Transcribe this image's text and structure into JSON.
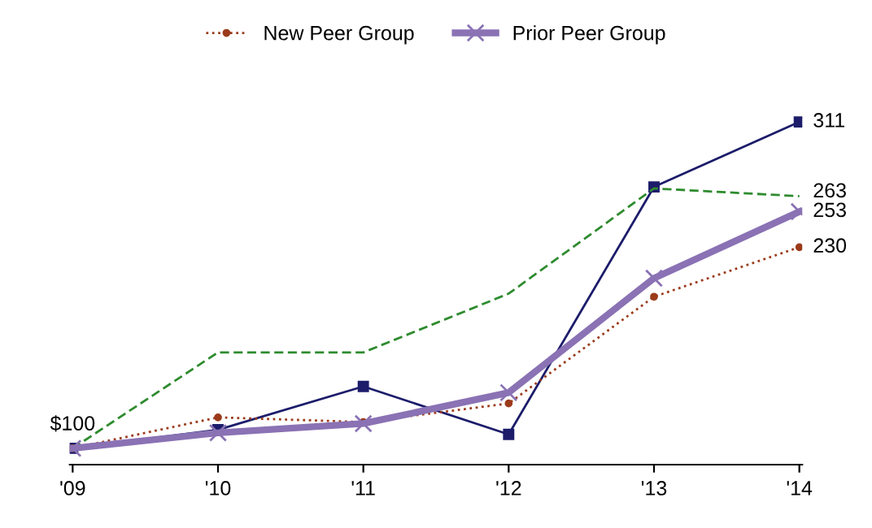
{
  "chart_data": {
    "type": "line",
    "categories": [
      "'09",
      "'10",
      "'11",
      "'12",
      "'13",
      "'14"
    ],
    "legend": "top",
    "grid": false,
    "series": [
      {
        "color": "#1c1c6b",
        "marker": "square",
        "line_style": "solid",
        "values": [
          100,
          112,
          140,
          109,
          269,
          311
        ],
        "value_labels": [
          "$100",
          null,
          null,
          null,
          null,
          "311"
        ]
      },
      {
        "color": "#2e8b2e",
        "marker": "none",
        "line_style": "dashed",
        "values": [
          100,
          162,
          162,
          200,
          268,
          263
        ],
        "value_labels": [
          null,
          null,
          null,
          null,
          null,
          "263"
        ]
      },
      {
        "name": "New Peer Group",
        "color": "#9b3b1b",
        "marker": "circle",
        "line_style": "dotted",
        "values": [
          100,
          120,
          117,
          129,
          198,
          230
        ],
        "value_labels": [
          null,
          null,
          null,
          null,
          null,
          "230"
        ]
      },
      {
        "name": "Prior Peer Group",
        "color": "#8a72b4",
        "marker": "cross",
        "line_style": "solid",
        "values": [
          100,
          110,
          116,
          136,
          210,
          253
        ],
        "value_labels": [
          null,
          null,
          null,
          null,
          null,
          "253"
        ]
      }
    ]
  }
}
